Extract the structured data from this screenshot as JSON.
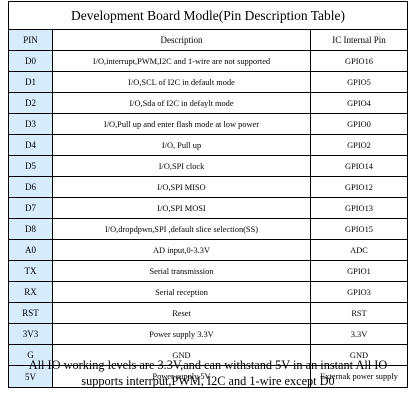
{
  "title": "Development Board Modle(Pin Description Table)",
  "headers": {
    "pin": "PIN",
    "description": "Description",
    "gpio": "IC Internal Pin"
  },
  "rows": [
    {
      "pin": "D0",
      "description": "I/O,interrupt,PWM,I2C and 1-wire are not supported",
      "gpio": "GPIO16"
    },
    {
      "pin": "D1",
      "description": "I/O,SCL of I2C in default mode",
      "gpio": "GPIO5"
    },
    {
      "pin": "D2",
      "description": "I/O,Sda of I2C in defaylt mode",
      "gpio": "GPIO4"
    },
    {
      "pin": "D3",
      "description": "I/O,Pull up and enter flash mode at low power",
      "gpio": "GPIO0"
    },
    {
      "pin": "D4",
      "description": "I/O, Pull up",
      "gpio": "GPIO2"
    },
    {
      "pin": "D5",
      "description": "I/O,SPI  clock",
      "gpio": "GPIO14"
    },
    {
      "pin": "D6",
      "description": "I/O,SPI  MISO",
      "gpio": "GPIO12"
    },
    {
      "pin": "D7",
      "description": "I/O,SPI  MOSI",
      "gpio": "GPIO13"
    },
    {
      "pin": "D8",
      "description": "I/O,dropdpwn,SPI ,default slice selection(SS)",
      "gpio": "GPIO15"
    },
    {
      "pin": "A0",
      "description": "AD input,0-3.3V",
      "gpio": "ADC"
    },
    {
      "pin": "TX",
      "description": "Serial transmission",
      "gpio": "GPIO1"
    },
    {
      "pin": "RX",
      "description": "Serial reception",
      "gpio": "GPIO3"
    },
    {
      "pin": "RST",
      "description": "Reset",
      "gpio": "RST"
    },
    {
      "pin": "3V3",
      "description": "Power supply 3.3V",
      "gpio": "3.3V"
    },
    {
      "pin": "G",
      "description": "GND",
      "gpio": "GND"
    },
    {
      "pin": "5V",
      "description": "Power supply 5V",
      "gpio": "Externak power supply"
    }
  ],
  "footer": {
    "line1": "All IO working levels are 3.3V,and can withstand 5V in an instant All IO",
    "line2": "supports interrput,PWM, I2C and 1-wire except D0"
  },
  "colors": {
    "pin_column_bg": "#d6ebfb",
    "border": "#000000"
  }
}
